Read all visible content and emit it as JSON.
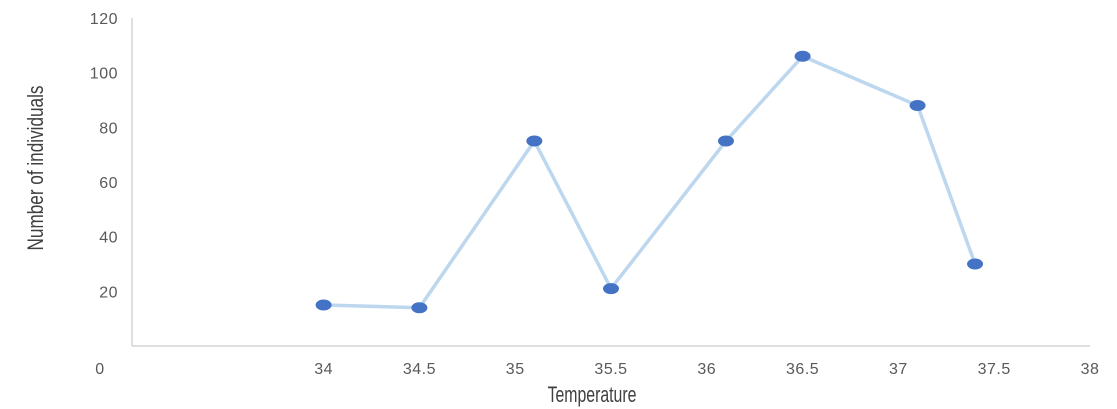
{
  "chart_data": {
    "type": "scatter",
    "title": "",
    "xlabel": "Temperature",
    "ylabel": "Number of individuals",
    "xlim": [
      33,
      38
    ],
    "ylim": [
      0,
      120
    ],
    "x_ticks": [
      34,
      34.5,
      35,
      35.5,
      36,
      36.5,
      37,
      37.5,
      38
    ],
    "x_tick_labels": [
      "34",
      "34.5",
      "35",
      "35.5",
      "36",
      "36.5",
      "37",
      "37.5",
      "38"
    ],
    "y_ticks": [
      20,
      40,
      60,
      80,
      100,
      120
    ],
    "y_tick_labels": [
      "20",
      "40",
      "60",
      "80",
      "100",
      "120"
    ],
    "origin_label": "0",
    "grid": false,
    "legend": "none",
    "line_color": "#bdd7ee",
    "marker_color": "#4472c4",
    "series": [
      {
        "x": [
          34,
          34.5,
          35.1,
          35.5,
          36.1,
          36.5,
          37.1,
          37.4
        ],
        "y": [
          15,
          14,
          75,
          21,
          75,
          106,
          88,
          30
        ]
      }
    ]
  }
}
